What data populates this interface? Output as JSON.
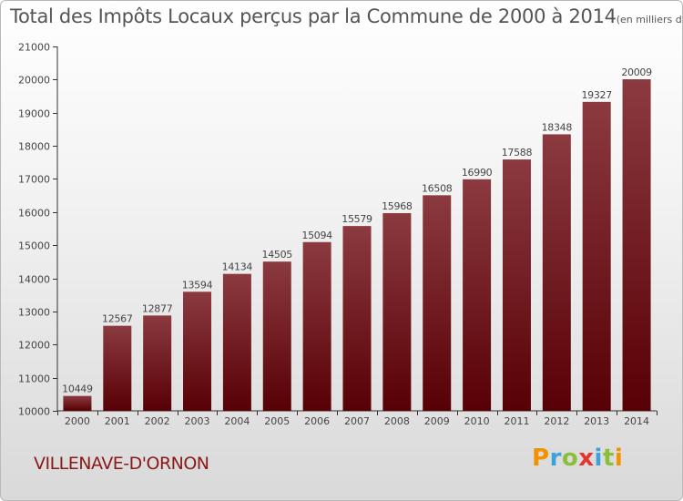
{
  "header": {
    "title": "Total des Impôts Locaux perçus par la Commune de 2000 à 2014",
    "unit": "(en milliers d'€)"
  },
  "footer": {
    "commune": "VILLENAVE-D'ORNON",
    "logo_letters": [
      "P",
      "r",
      "o",
      "x",
      "i",
      "t",
      "i"
    ],
    "logo_colors": [
      "#f39200",
      "#3aa2dc",
      "#8bbf3a",
      "#e3342f",
      "#3aa2dc",
      "#8bbf3a",
      "#f39200"
    ]
  },
  "colors": {
    "bar_top": "#8b3a40",
    "bar_bottom": "#570005",
    "axis": "#333333",
    "grid": "#dddddd"
  },
  "chart_data": {
    "type": "bar",
    "title": "Total des Impôts Locaux perçus par la Commune de 2000 à 2014",
    "xlabel": "",
    "ylabel": "",
    "categories": [
      "2000",
      "2001",
      "2002",
      "2003",
      "2004",
      "2005",
      "2006",
      "2007",
      "2008",
      "2009",
      "2010",
      "2011",
      "2012",
      "2013",
      "2014"
    ],
    "values": [
      10449,
      12567,
      12877,
      13594,
      14134,
      14505,
      15094,
      15579,
      15968,
      16508,
      16990,
      17588,
      18348,
      19327,
      20009
    ],
    "ylim": [
      10000,
      21000
    ],
    "yticks": [
      10000,
      11000,
      12000,
      13000,
      14000,
      15000,
      16000,
      17000,
      18000,
      19000,
      20000,
      21000
    ],
    "grid": false,
    "data_labels": true
  }
}
